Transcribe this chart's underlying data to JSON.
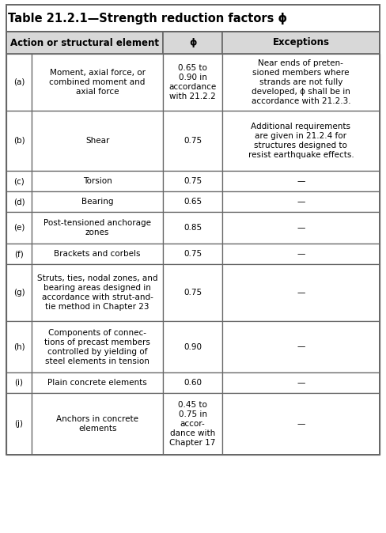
{
  "title": "Table 21.2.1—Strength reduction factors ϕ",
  "headers": [
    "Action or structural element",
    "ϕ",
    "Exceptions"
  ],
  "col_labels": [
    "(a)",
    "(b)",
    "(c)",
    "(d)",
    "(e)",
    "(f)",
    "(g)",
    "(h)",
    "(i)",
    "(j)"
  ],
  "col1": [
    "Moment, axial force, or\ncombined moment and\naxial force",
    "Shear",
    "Torsion",
    "Bearing",
    "Post-tensioned anchorage\nzones",
    "Brackets and corbels",
    "Struts, ties, nodal zones, and\nbearing areas designed in\naccordance with strut-and-\ntie method in Chapter 23",
    "Components of connec-\ntions of precast members\ncontrolled by yielding of\nsteel elements in tension",
    "Plain concrete elements",
    "Anchors in concrete\nelements"
  ],
  "col2": [
    "0.65 to\n0.90 in\naccordance\nwith 21.2.2",
    "0.75",
    "0.75",
    "0.65",
    "0.85",
    "0.75",
    "0.75",
    "0.90",
    "0.60",
    "0.45 to\n0.75 in\naccor-\ndance with\nChapter 17"
  ],
  "col3": [
    "Near ends of preten-\nsioned members where\nstrands are not fully\ndeveloped, ϕ shall be in\naccordance with 21.2.3.",
    "Additional requirements\nare given in 21.2.4 for\nstructures designed to\nresist earthquake effects.",
    "—",
    "—",
    "—",
    "—",
    "—",
    "—",
    "—",
    "—"
  ],
  "background": "#ffffff",
  "border_color": "#666666",
  "text_color": "#000000",
  "title_fontsize": 10.5,
  "header_fontsize": 8.5,
  "cell_fontsize": 7.5,
  "fig_width": 4.88,
  "fig_height": 6.74,
  "dpi": 100
}
